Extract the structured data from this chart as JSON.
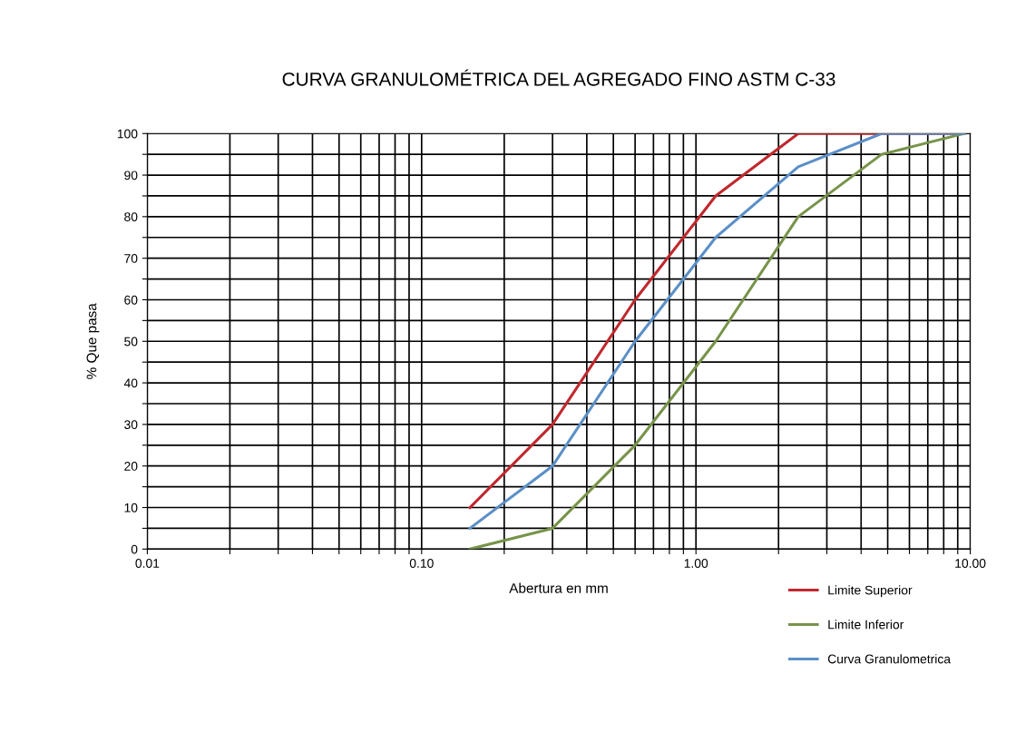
{
  "chart_data": {
    "type": "line",
    "title": "CURVA GRANULOMÉTRICA DEL AGREGADO FINO ASTM C-33",
    "xlabel": "Abertura en mm",
    "ylabel": "% Que pasa",
    "x": [
      0.15,
      0.3,
      0.6,
      1.18,
      2.36,
      4.75,
      9.5
    ],
    "series": [
      {
        "name": "Limite Superior",
        "color": "#c0282d",
        "values": [
          10,
          30,
          60,
          85,
          100,
          100,
          100
        ]
      },
      {
        "name": "Limite Inferior",
        "color": "#77934a",
        "values": [
          0,
          5,
          25,
          50,
          80,
          95,
          100
        ]
      },
      {
        "name": "Curva Granulometrica",
        "color": "#5b8fc7",
        "values": [
          5,
          20,
          50,
          75,
          92,
          100,
          100
        ]
      }
    ],
    "log": "x",
    "xlim": [
      0.01,
      10
    ],
    "xticks": [
      {
        "value": 0.01,
        "label": "0.01"
      },
      {
        "value": 0.02,
        "label": null
      },
      {
        "value": 0.03,
        "label": null
      },
      {
        "value": 0.04,
        "label": null
      },
      {
        "value": 0.05,
        "label": null
      },
      {
        "value": 0.06,
        "label": null
      },
      {
        "value": 0.07,
        "label": null
      },
      {
        "value": 0.08,
        "label": null
      },
      {
        "value": 0.09,
        "label": null
      },
      {
        "value": 0.1,
        "label": "0.10"
      },
      {
        "value": 0.2,
        "label": null
      },
      {
        "value": 0.3,
        "label": null
      },
      {
        "value": 0.4,
        "label": null
      },
      {
        "value": 0.5,
        "label": null
      },
      {
        "value": 0.6,
        "label": null
      },
      {
        "value": 0.7,
        "label": null
      },
      {
        "value": 0.8,
        "label": null
      },
      {
        "value": 0.9,
        "label": null
      },
      {
        "value": 1,
        "label": "1.00"
      },
      {
        "value": 2,
        "label": null
      },
      {
        "value": 3,
        "label": null
      },
      {
        "value": 4,
        "label": null
      },
      {
        "value": 5,
        "label": null
      },
      {
        "value": 6,
        "label": null
      },
      {
        "value": 7,
        "label": null
      },
      {
        "value": 8,
        "label": null
      },
      {
        "value": 9,
        "label": null
      },
      {
        "value": 10,
        "label": "10.00"
      }
    ],
    "ylim": [
      0,
      100
    ],
    "yticks": [
      0,
      {
        "value": 5,
        "label": null
      },
      10,
      {
        "value": 15,
        "label": null
      },
      20,
      {
        "value": 25,
        "label": null
      },
      30,
      {
        "value": 35,
        "label": null
      },
      40,
      {
        "value": 45,
        "label": null
      },
      50,
      {
        "value": 55,
        "label": null
      },
      60,
      {
        "value": 65,
        "label": null
      },
      70,
      {
        "value": 75,
        "label": null
      },
      80,
      {
        "value": 85,
        "label": null
      },
      90,
      {
        "value": 95,
        "label": null
      },
      100
    ],
    "grid": true,
    "legend": "bottom right",
    "line_style": "solid",
    "marker": "none"
  }
}
